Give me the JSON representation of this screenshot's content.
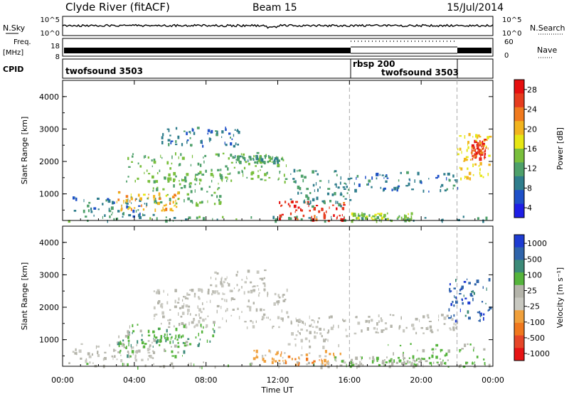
{
  "header": {
    "station": "Clyde River (fitACF)",
    "beam": "Beam 15",
    "date": "15/Jul/2014"
  },
  "summary": {
    "nsky_label": "N.Sky",
    "nsky_ticks": [
      "10^5",
      "10^0"
    ],
    "nsearch_label": "N.Search",
    "freq_label": "Freq.",
    "freq_unit": "[MHz]",
    "freq_ticks": [
      "18",
      "8"
    ],
    "nave_label": "Nave",
    "nave_ticks": [
      "60",
      "0"
    ],
    "cpid_label": "CPID",
    "cpid_segments": [
      {
        "start": 0,
        "end": 16,
        "label": "twofsound 3503"
      },
      {
        "start": 16,
        "end": 22,
        "label": "rbsp 200"
      },
      {
        "start": 16,
        "end": 22,
        "label": "twofsound 3503"
      }
    ]
  },
  "colors": {
    "power_scale": [
      "#1e1ee6",
      "#1e50c8",
      "#2f7d8c",
      "#4ea06a",
      "#79bf3c",
      "#e6e614",
      "#f2b41e",
      "#f07a1e",
      "#e63c1e",
      "#e60f0f"
    ],
    "velocity_scale": [
      "#1e3cd2",
      "#2f64aa",
      "#3c8a78",
      "#55b43c",
      "#b4b4aa",
      "#c8c8c0",
      "#f0a03c",
      "#f0781e",
      "#e64628",
      "#e61414"
    ],
    "axis": "#000000",
    "gap_marker": "#aaaaaa"
  },
  "chart_data": [
    {
      "type": "heatmap",
      "title": "Power",
      "xlabel": "Time UT",
      "ylabel": "Slant Range [km]",
      "xlim": [
        0,
        24
      ],
      "ylim": [
        180,
        4500
      ],
      "x_ticks": [
        "00:00",
        "04:00",
        "08:00",
        "12:00",
        "16:00",
        "20:00",
        "00:00"
      ],
      "y_ticks": [
        "1000",
        "2000",
        "3000",
        "4000"
      ],
      "colorbar": {
        "label": "Power [dB]",
        "ticks": [
          "28",
          "24",
          "20",
          "16",
          "12",
          "8",
          "4"
        ],
        "range": [
          0,
          30
        ]
      },
      "scatter_regions": [
        {
          "t0": 0.2,
          "t1": 23.8,
          "r0": 180,
          "r1": 330,
          "value": 10
        },
        {
          "t0": 0.5,
          "t1": 5.2,
          "r0": 300,
          "r1": 950,
          "value": 8
        },
        {
          "t0": 3.0,
          "t1": 6.5,
          "r0": 500,
          "r1": 1100,
          "value": 20
        },
        {
          "t0": 5.0,
          "t1": 9.0,
          "r0": 700,
          "r1": 1500,
          "value": 12
        },
        {
          "t0": 3.5,
          "t1": 12.5,
          "r0": 1400,
          "r1": 2300,
          "value": 12
        },
        {
          "t0": 5.5,
          "t1": 9.8,
          "r0": 2500,
          "r1": 3100,
          "value": 7
        },
        {
          "t0": 9.5,
          "t1": 12.0,
          "r0": 2000,
          "r1": 2200,
          "value": 10
        },
        {
          "t0": 12.0,
          "t1": 15.8,
          "r0": 200,
          "r1": 800,
          "value": 26
        },
        {
          "t0": 12.5,
          "t1": 16.0,
          "r0": 600,
          "r1": 1800,
          "value": 9
        },
        {
          "t0": 16.0,
          "t1": 22.0,
          "r0": 1100,
          "r1": 1700,
          "value": 7
        },
        {
          "t0": 16.0,
          "t1": 19.5,
          "r0": 200,
          "r1": 450,
          "value": 14
        },
        {
          "t0": 22.0,
          "t1": 23.8,
          "r0": 1500,
          "r1": 2900,
          "value": 18
        },
        {
          "t0": 22.8,
          "t1": 23.6,
          "r0": 2100,
          "r1": 2700,
          "value": 26
        }
      ]
    },
    {
      "type": "heatmap",
      "title": "Velocity",
      "xlabel": "Time UT",
      "ylabel": "Slant Range [km]",
      "xlim": [
        0,
        24
      ],
      "ylim": [
        180,
        4500
      ],
      "x_ticks": [
        "00:00",
        "04:00",
        "08:00",
        "12:00",
        "16:00",
        "20:00",
        "00:00"
      ],
      "y_ticks": [
        "1000",
        "2000",
        "3000",
        "4000"
      ],
      "colorbar": {
        "label": "Velocity [m s⁻¹]",
        "ticks": [
          "1000",
          "500",
          "100",
          "25",
          "-25",
          "-100",
          "-500",
          "-1000"
        ],
        "range": [
          -1000,
          1000
        ]
      },
      "scatter_regions": [
        {
          "t0": 0.2,
          "t1": 23.8,
          "r0": 180,
          "r1": 330,
          "value": 150
        },
        {
          "t0": 0.5,
          "t1": 5.0,
          "r0": 300,
          "r1": 900,
          "value": 0
        },
        {
          "t0": 3.0,
          "t1": 7.0,
          "r0": 500,
          "r1": 1200,
          "value": 300
        },
        {
          "t0": 5.0,
          "t1": 12.5,
          "r0": 1400,
          "r1": 2600,
          "value": 0
        },
        {
          "t0": 3.5,
          "t1": 8.5,
          "r0": 800,
          "r1": 1500,
          "value": 300
        },
        {
          "t0": 8.0,
          "t1": 11.5,
          "r0": 2400,
          "r1": 3200,
          "value": 0
        },
        {
          "t0": 10.5,
          "t1": 15.5,
          "r0": 250,
          "r1": 700,
          "value": -300
        },
        {
          "t0": 12.5,
          "t1": 16.0,
          "r0": 800,
          "r1": 1800,
          "value": 0
        },
        {
          "t0": 16.0,
          "t1": 22.0,
          "r0": 1200,
          "r1": 1800,
          "value": 0
        },
        {
          "t0": 15.0,
          "t1": 20.0,
          "r0": 200,
          "r1": 500,
          "value": 150
        },
        {
          "t0": 21.5,
          "t1": 23.8,
          "r0": 1600,
          "r1": 2900,
          "value": 700
        },
        {
          "t0": 18.0,
          "t1": 23.5,
          "r0": 300,
          "r1": 900,
          "value": 200
        }
      ]
    }
  ]
}
